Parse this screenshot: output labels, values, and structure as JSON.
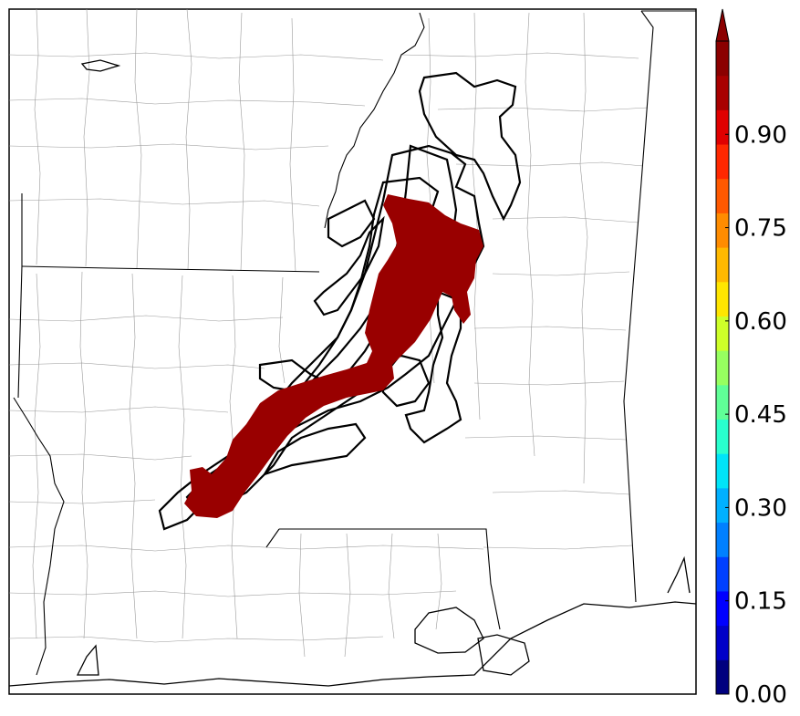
{
  "map": {
    "colorbar": {
      "colors": [
        "#00007f",
        "#0000c8",
        "#0000ff",
        "#0040ff",
        "#0080ff",
        "#00b0ff",
        "#00e4f8",
        "#29ffce",
        "#60ff97",
        "#97ff60",
        "#ceff29",
        "#ffe600",
        "#ffb900",
        "#ff8c00",
        "#ff5900",
        "#ff2800",
        "#e00000",
        "#a80000",
        "#8b0000"
      ],
      "max_color": "#8b0000",
      "ticks": [
        {
          "value": 0.0,
          "label": "0.00"
        },
        {
          "value": 0.15,
          "label": "0.15"
        },
        {
          "value": 0.3,
          "label": "0.30"
        },
        {
          "value": 0.45,
          "label": "0.45"
        },
        {
          "value": 0.6,
          "label": "0.60"
        },
        {
          "value": 0.75,
          "label": "0.75"
        },
        {
          "value": 0.9,
          "label": "0.90"
        }
      ],
      "range": [
        0.0,
        1.05
      ],
      "extend": "max"
    },
    "probability_fill_color": "#990000",
    "probability_fill_value": 1.0,
    "ensemble_member_outline_color": "#000000",
    "state_border_color": "#000000",
    "county_border_color": "#9a9a9a"
  }
}
